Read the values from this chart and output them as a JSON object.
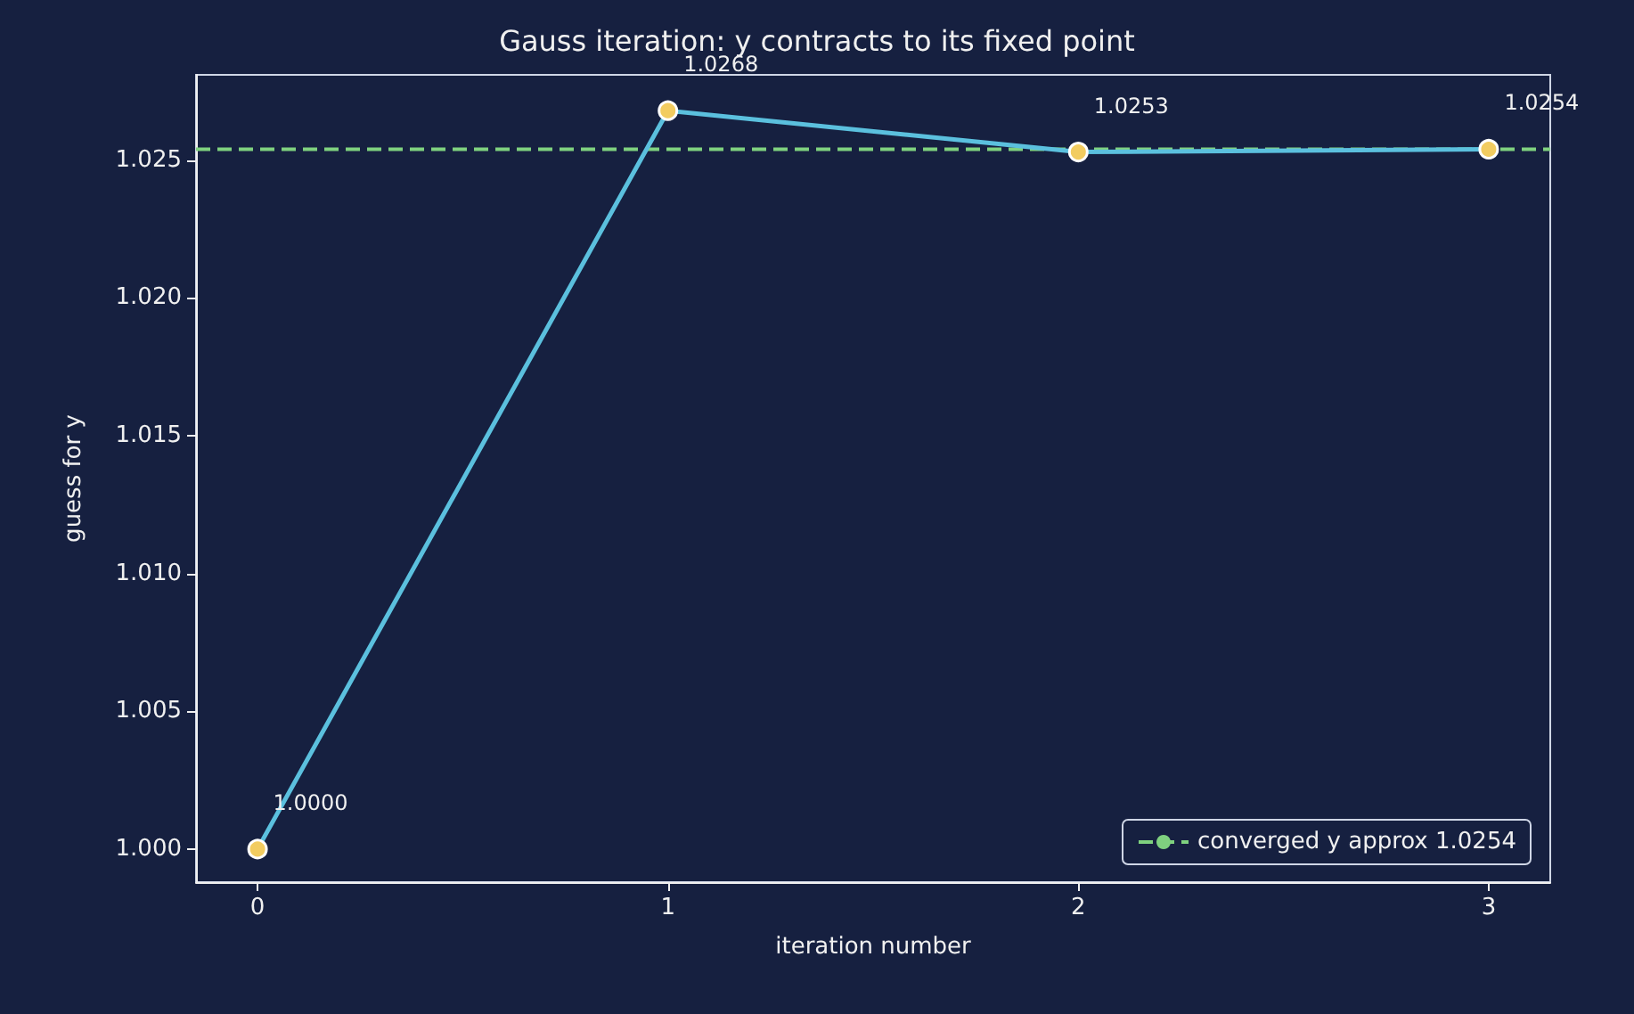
{
  "chart_data": {
    "type": "line",
    "title": "Gauss iteration: y contracts to its fixed point",
    "xlabel": "iteration number",
    "ylabel": "guess for y",
    "x": [
      0,
      1,
      2,
      3
    ],
    "series": [
      {
        "color": "#5bc0de",
        "values": [
          1.0,
          1.0268,
          1.0253,
          1.0254
        ],
        "value_labels": [
          "1.0000",
          "1.0268",
          "1.0253",
          "1.0254"
        ]
      }
    ],
    "marker": "circle",
    "line_style": "solid",
    "xlim": [
      -0.15,
      3.15
    ],
    "xticks": [
      0,
      1,
      2,
      3
    ],
    "ylim": [
      0.9988,
      1.0281
    ],
    "yticks": [
      {
        "value": 1.0,
        "label": "1.000"
      },
      {
        "value": 1.005,
        "label": "1.005"
      },
      {
        "value": 1.01,
        "label": "1.010"
      },
      {
        "value": 1.015,
        "label": "1.015"
      },
      {
        "value": 1.02,
        "label": "1.020"
      },
      {
        "value": 1.025,
        "label": "1.025"
      }
    ],
    "ref_lines": [
      {
        "axis": "y",
        "value": 1.0254,
        "label": "converged y approx 1.0254",
        "color": "#7fd17f",
        "line_style": "dashed"
      }
    ],
    "legend": "bottom right",
    "grid": false
  }
}
